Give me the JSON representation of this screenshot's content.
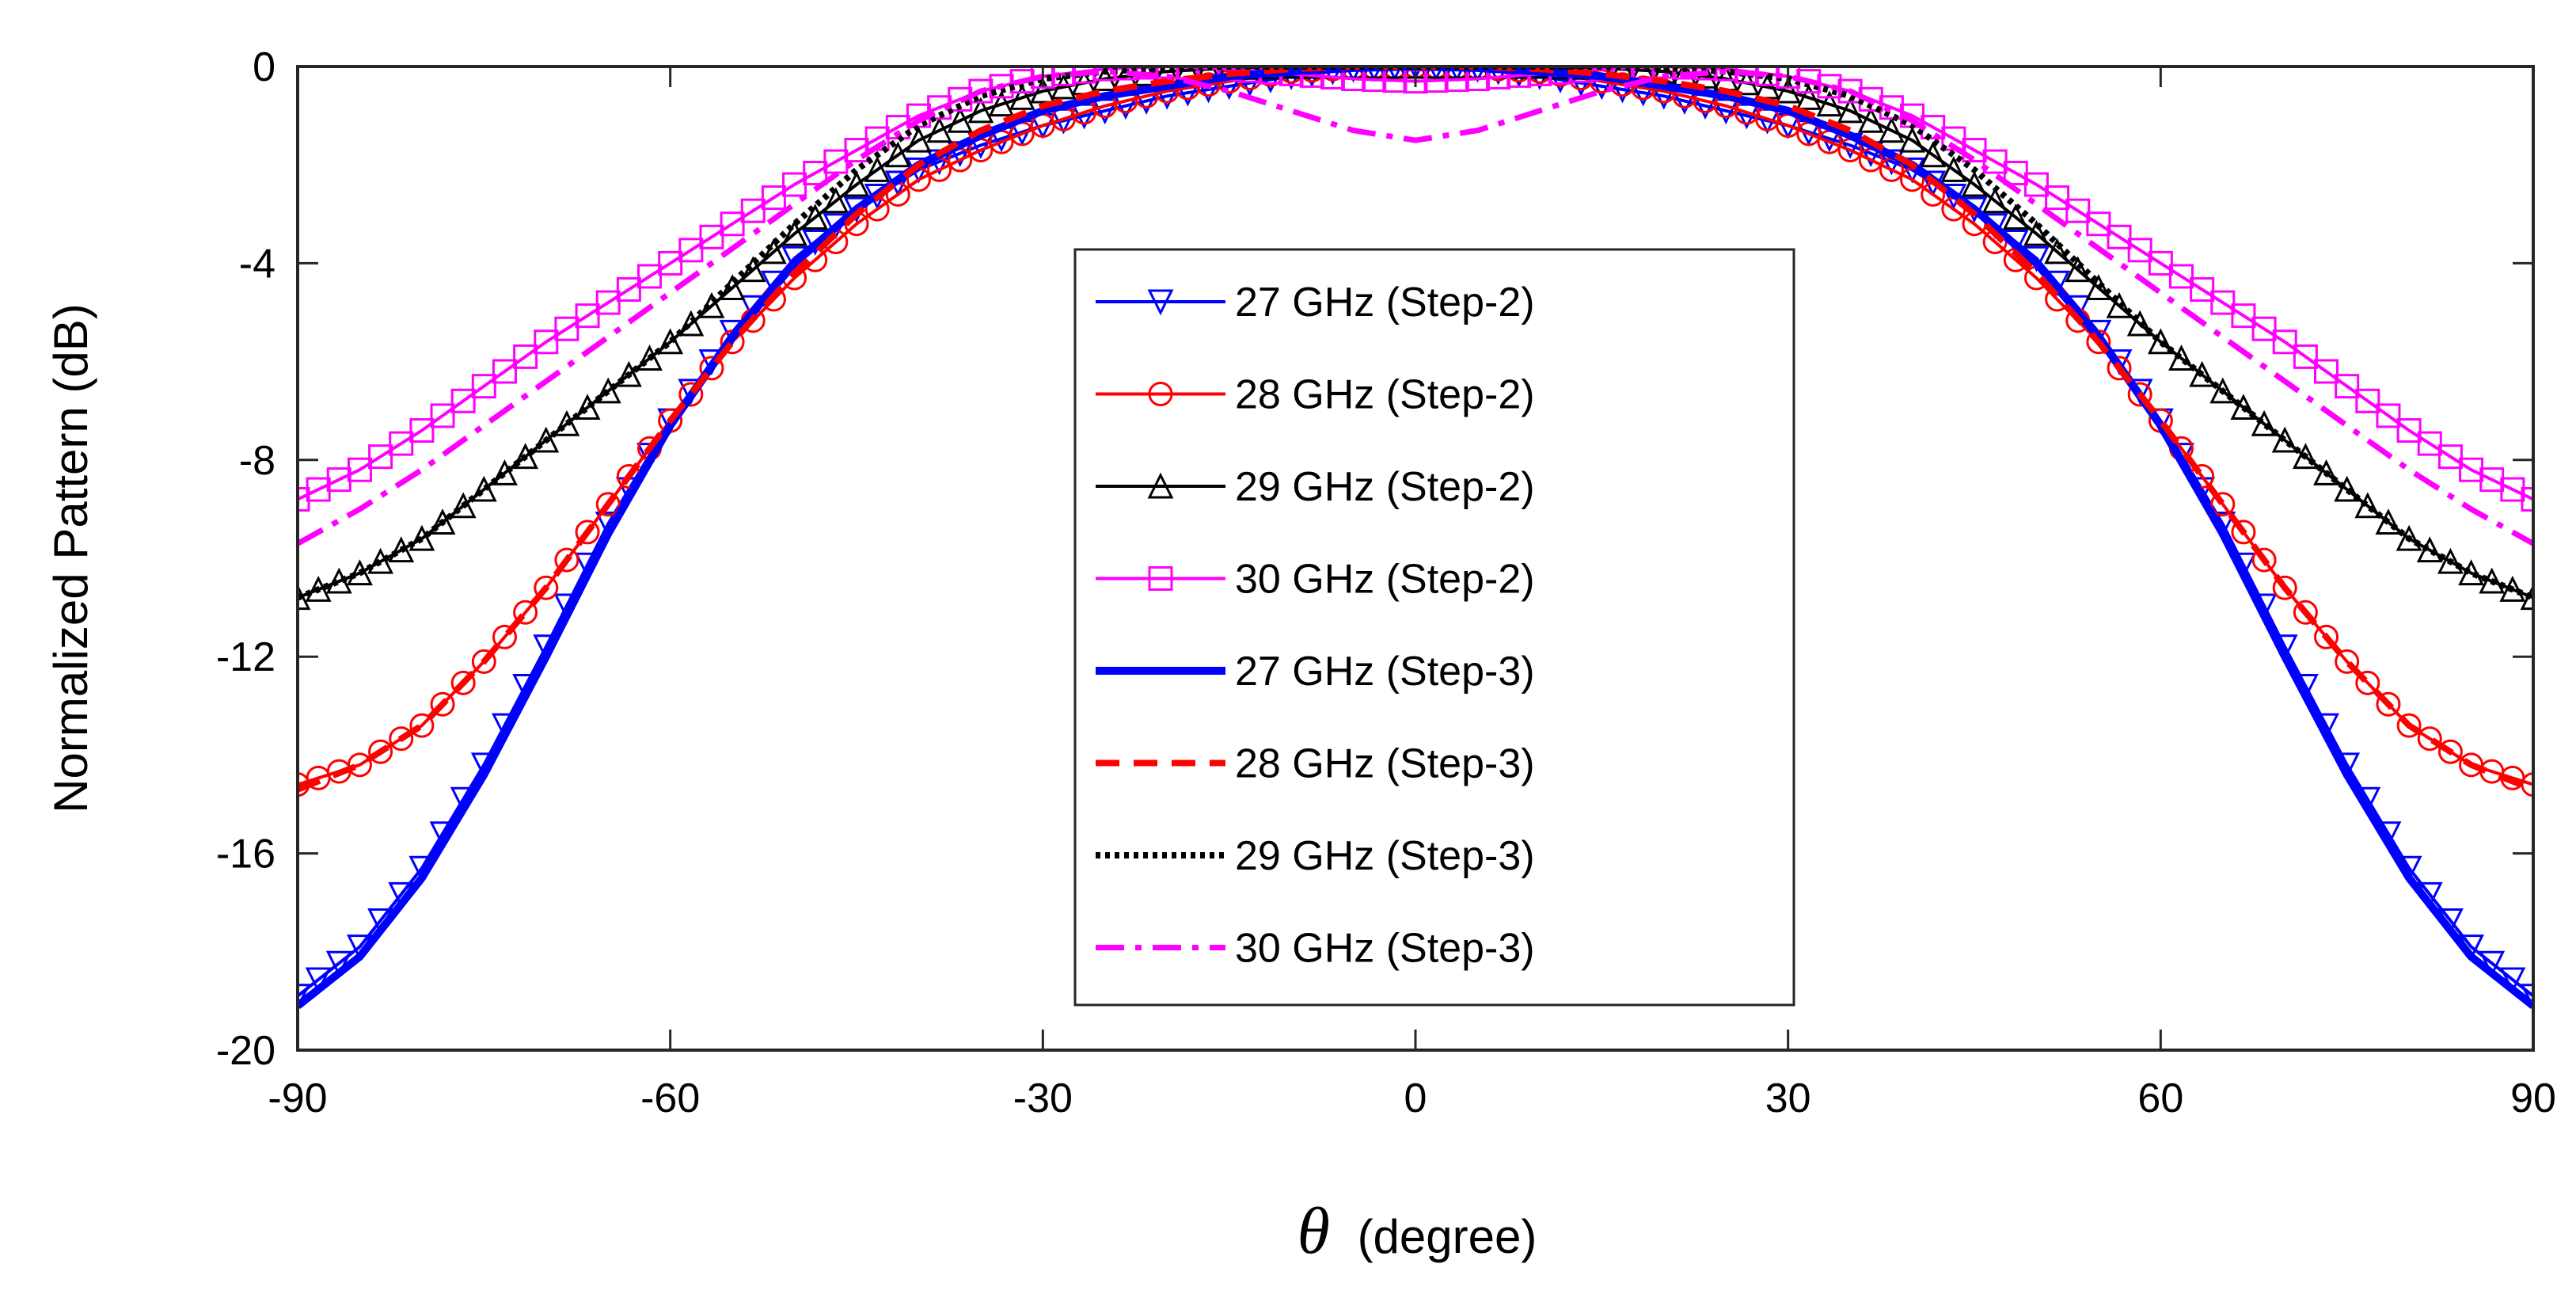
{
  "chart_data": {
    "type": "line",
    "title": "",
    "xlabel_symbol": "θ",
    "xlabel": "(degree)",
    "ylabel": "Normalized Pattern (dB)",
    "xlim": [
      -90,
      90
    ],
    "ylim": [
      -20,
      0
    ],
    "xticks": [
      -90,
      -60,
      -30,
      0,
      30,
      60,
      90
    ],
    "yticks": [
      0,
      -4,
      -8,
      -12,
      -16,
      -20
    ],
    "xtick_labels": [
      "-90",
      "-60",
      "-30",
      "0",
      "30",
      "60",
      "90"
    ],
    "ytick_labels": [
      "0",
      "-4",
      "-8",
      "-12",
      "-16",
      "-20"
    ],
    "grid": false,
    "legend_position": "center",
    "x": [
      -90,
      -85,
      -80,
      -75,
      -70,
      -65,
      -60,
      -55,
      -50,
      -45,
      -40,
      -35,
      -30,
      -25,
      -20,
      -15,
      -10,
      -5,
      0,
      5,
      10,
      15,
      20,
      25,
      30,
      35,
      40,
      45,
      50,
      55,
      60,
      65,
      70,
      75,
      80,
      85,
      90
    ],
    "series": [
      {
        "name": "27 GHz (Step-2)",
        "color": "#0000ff",
        "line_style": "solid",
        "marker": "triangle-down",
        "values": [
          -18.9,
          -17.9,
          -16.3,
          -14.2,
          -11.8,
          -9.3,
          -7.2,
          -5.4,
          -3.9,
          -2.9,
          -2.1,
          -1.6,
          -1.2,
          -0.9,
          -0.6,
          -0.4,
          -0.2,
          -0.05,
          0.0,
          -0.05,
          -0.2,
          -0.4,
          -0.6,
          -0.9,
          -1.2,
          -1.6,
          -2.1,
          -2.9,
          -3.9,
          -5.4,
          -7.2,
          -9.3,
          -11.8,
          -14.2,
          -16.3,
          -17.9,
          -18.9
        ]
      },
      {
        "name": "28 GHz (Step-2)",
        "color": "#ff0000",
        "line_style": "solid",
        "marker": "circle",
        "values": [
          -14.6,
          -14.2,
          -13.4,
          -12.1,
          -10.6,
          -8.9,
          -7.2,
          -5.6,
          -4.3,
          -3.2,
          -2.3,
          -1.7,
          -1.2,
          -0.8,
          -0.5,
          -0.3,
          -0.1,
          -0.03,
          0.0,
          -0.03,
          -0.1,
          -0.3,
          -0.5,
          -0.8,
          -1.2,
          -1.7,
          -2.3,
          -3.2,
          -4.3,
          -5.6,
          -7.2,
          -8.9,
          -10.6,
          -12.1,
          -13.4,
          -14.2,
          -14.6
        ]
      },
      {
        "name": "29 GHz (Step-2)",
        "color": "#000000",
        "line_style": "solid",
        "marker": "triangle-up",
        "values": [
          -10.8,
          -10.3,
          -9.6,
          -8.6,
          -7.6,
          -6.6,
          -5.6,
          -4.5,
          -3.4,
          -2.4,
          -1.5,
          -0.9,
          -0.5,
          -0.25,
          -0.1,
          -0.03,
          0.0,
          0.0,
          0.0,
          0.0,
          0.0,
          -0.03,
          -0.1,
          -0.25,
          -0.5,
          -0.9,
          -1.5,
          -2.4,
          -3.4,
          -4.5,
          -5.6,
          -6.6,
          -7.6,
          -8.6,
          -9.6,
          -10.3,
          -10.8
        ]
      },
      {
        "name": "30 GHz (Step-2)",
        "color": "#ff00ff",
        "line_style": "solid",
        "marker": "square",
        "values": [
          -8.8,
          -8.2,
          -7.4,
          -6.5,
          -5.6,
          -4.8,
          -4.0,
          -3.2,
          -2.4,
          -1.7,
          -1.0,
          -0.5,
          -0.2,
          -0.05,
          0.0,
          -0.05,
          -0.15,
          -0.25,
          -0.3,
          -0.25,
          -0.15,
          -0.05,
          0.0,
          -0.05,
          -0.2,
          -0.5,
          -1.0,
          -1.7,
          -2.4,
          -3.2,
          -4.0,
          -4.8,
          -5.6,
          -6.5,
          -7.4,
          -8.2,
          -8.8
        ]
      },
      {
        "name": "27 GHz (Step-3)",
        "color": "#0000ff",
        "line_style": "solid-thick",
        "marker": "none",
        "values": [
          -19.1,
          -18.1,
          -16.5,
          -14.4,
          -12.0,
          -9.5,
          -7.3,
          -5.5,
          -4.0,
          -2.9,
          -2.0,
          -1.4,
          -0.9,
          -0.6,
          -0.4,
          -0.2,
          -0.1,
          -0.03,
          0.0,
          -0.03,
          -0.1,
          -0.2,
          -0.4,
          -0.6,
          -0.9,
          -1.4,
          -2.0,
          -2.9,
          -4.0,
          -5.5,
          -7.3,
          -9.5,
          -12.0,
          -14.4,
          -16.5,
          -18.1,
          -19.1
        ]
      },
      {
        "name": "28 GHz (Step-3)",
        "color": "#ff0000",
        "line_style": "dashed",
        "marker": "none",
        "values": [
          -14.7,
          -14.2,
          -13.4,
          -12.1,
          -10.6,
          -8.9,
          -7.2,
          -5.6,
          -4.2,
          -3.0,
          -2.0,
          -1.3,
          -0.8,
          -0.5,
          -0.3,
          -0.15,
          -0.05,
          0.0,
          0.0,
          0.0,
          -0.05,
          -0.15,
          -0.3,
          -0.5,
          -0.8,
          -1.3,
          -2.0,
          -3.0,
          -4.2,
          -5.6,
          -7.2,
          -8.9,
          -10.6,
          -12.1,
          -13.4,
          -14.2,
          -14.7
        ]
      },
      {
        "name": "29 GHz (Step-3)",
        "color": "#000000",
        "line_style": "dotted",
        "marker": "none",
        "values": [
          -10.8,
          -10.3,
          -9.6,
          -8.6,
          -7.6,
          -6.6,
          -5.6,
          -4.4,
          -3.2,
          -2.1,
          -1.2,
          -0.6,
          -0.25,
          -0.1,
          -0.03,
          0.0,
          0.0,
          0.0,
          0.0,
          0.0,
          0.0,
          0.0,
          -0.03,
          -0.1,
          -0.25,
          -0.6,
          -1.2,
          -2.1,
          -3.2,
          -4.4,
          -5.6,
          -6.6,
          -7.6,
          -8.6,
          -9.6,
          -10.3,
          -10.8
        ]
      },
      {
        "name": "30 GHz (Step-3)",
        "color": "#ff00ff",
        "line_style": "dash-dot",
        "marker": "none",
        "values": [
          -9.7,
          -9.0,
          -8.2,
          -7.3,
          -6.4,
          -5.5,
          -4.6,
          -3.7,
          -2.8,
          -1.9,
          -1.1,
          -0.5,
          -0.2,
          -0.1,
          -0.2,
          -0.5,
          -0.9,
          -1.3,
          -1.5,
          -1.3,
          -0.9,
          -0.5,
          -0.2,
          -0.1,
          -0.2,
          -0.5,
          -1.1,
          -1.9,
          -2.8,
          -3.7,
          -4.6,
          -5.5,
          -6.4,
          -7.3,
          -8.2,
          -9.0,
          -9.7
        ]
      }
    ]
  }
}
